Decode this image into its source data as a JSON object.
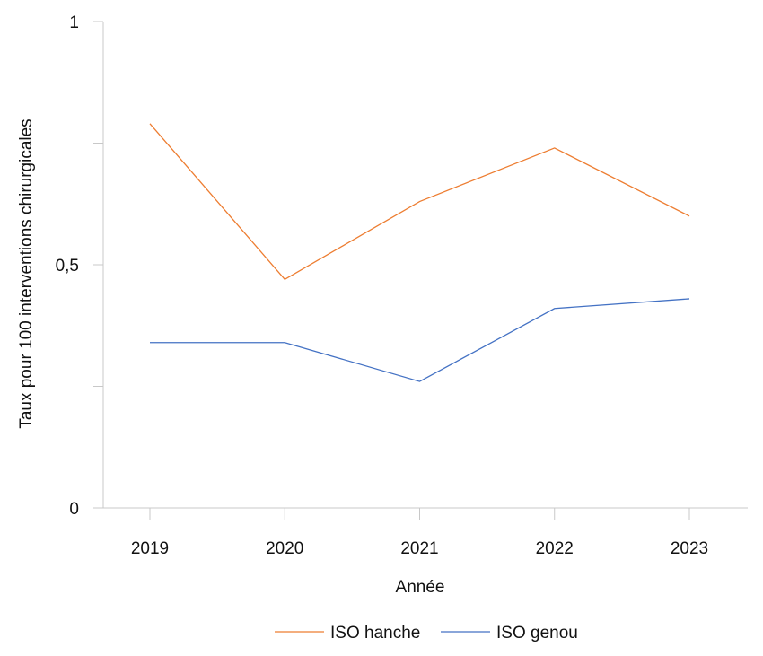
{
  "chart_data": {
    "type": "line",
    "title": "",
    "xlabel": "Année",
    "ylabel": "Taux pour 100 interventions chirurgicales",
    "categories": [
      "2019",
      "2020",
      "2021",
      "2022",
      "2023"
    ],
    "ylim": [
      0,
      1
    ],
    "y_ticks": [
      0,
      0.25,
      0.5,
      0.75,
      1
    ],
    "y_tick_labels": [
      "0",
      "",
      "0,5",
      "",
      "1"
    ],
    "grid": false,
    "legend_position": "bottom",
    "series": [
      {
        "name": "ISO hanche",
        "color": "#ed7d31",
        "values": [
          0.79,
          0.47,
          0.63,
          0.74,
          0.6
        ]
      },
      {
        "name": "ISO genou",
        "color": "#4472c4",
        "values": [
          0.34,
          0.34,
          0.26,
          0.41,
          0.43
        ]
      }
    ]
  }
}
